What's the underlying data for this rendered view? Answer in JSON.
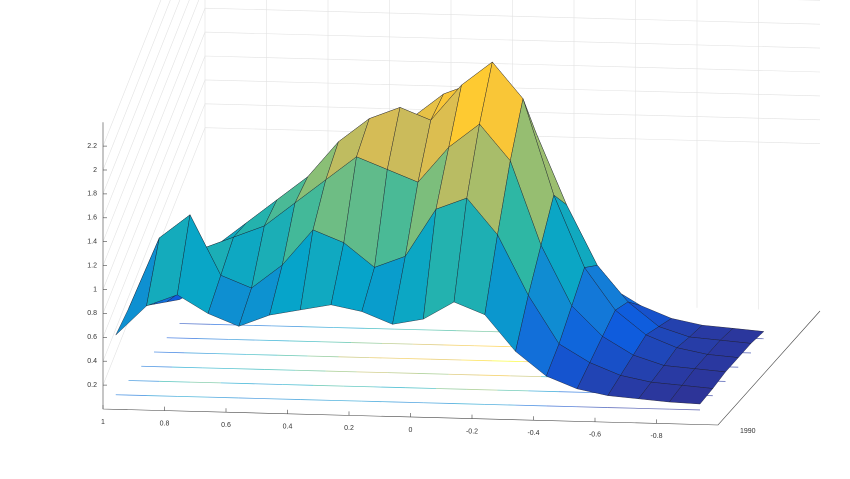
{
  "chart_data": {
    "type": "surface",
    "x": [
      1,
      0.9,
      0.8,
      0.7,
      0.6,
      0.5,
      0.4,
      0.3,
      0.2,
      0.1,
      0,
      -0.1,
      -0.2,
      -0.3,
      -0.4,
      -0.5,
      -0.6,
      -0.7,
      -0.8,
      -0.9
    ],
    "z": [
      [
        0.5,
        0.75,
        0.85,
        0.7,
        0.6,
        0.7,
        0.75,
        0.8,
        0.75,
        0.65,
        0.7,
        0.85,
        0.75,
        0.45,
        0.25,
        0.15,
        0.1,
        0.08,
        0.06,
        0.05
      ],
      [
        0.6,
        1.2,
        1.4,
        0.9,
        0.8,
        1.0,
        1.3,
        1.2,
        1.0,
        1.1,
        1.5,
        1.6,
        1.3,
        0.8,
        0.4,
        0.25,
        0.15,
        0.1,
        0.08,
        0.06
      ],
      [
        0.5,
        0.9,
        1.0,
        1.1,
        1.2,
        1.4,
        1.6,
        1.8,
        1.7,
        1.6,
        1.9,
        2.1,
        1.8,
        1.1,
        0.6,
        0.35,
        0.2,
        0.12,
        0.1,
        0.08
      ],
      [
        0.4,
        0.7,
        0.9,
        1.1,
        1.3,
        1.5,
        1.8,
        2.0,
        2.1,
        2.0,
        2.3,
        2.5,
        2.2,
        1.4,
        0.8,
        0.45,
        0.25,
        0.15,
        0.1,
        0.08
      ],
      [
        0.3,
        0.5,
        0.7,
        0.9,
        1.1,
        1.3,
        1.5,
        1.7,
        1.9,
        2.1,
        2.2,
        2.2,
        1.8,
        1.2,
        0.7,
        0.4,
        0.2,
        0.12,
        0.1,
        0.08
      ],
      [
        0.2,
        0.35,
        0.5,
        0.6,
        0.8,
        0.9,
        1.1,
        1.2,
        1.3,
        1.4,
        1.4,
        1.3,
        1.0,
        0.7,
        0.4,
        0.25,
        0.15,
        0.1,
        0.08,
        0.06
      ]
    ],
    "xlim": [
      1,
      -1
    ],
    "xticks": [
      1,
      0.8,
      0.6,
      0.4,
      0.2,
      0,
      -0.2,
      -0.4,
      -0.6,
      -0.8
    ],
    "zlim": [
      0,
      2.4
    ],
    "zticks": [
      0.2,
      0.4,
      0.6,
      0.8,
      1,
      1.2,
      1.4,
      1.6,
      1.8,
      2,
      2.2
    ],
    "ytick_label": "1990",
    "grid": true
  }
}
